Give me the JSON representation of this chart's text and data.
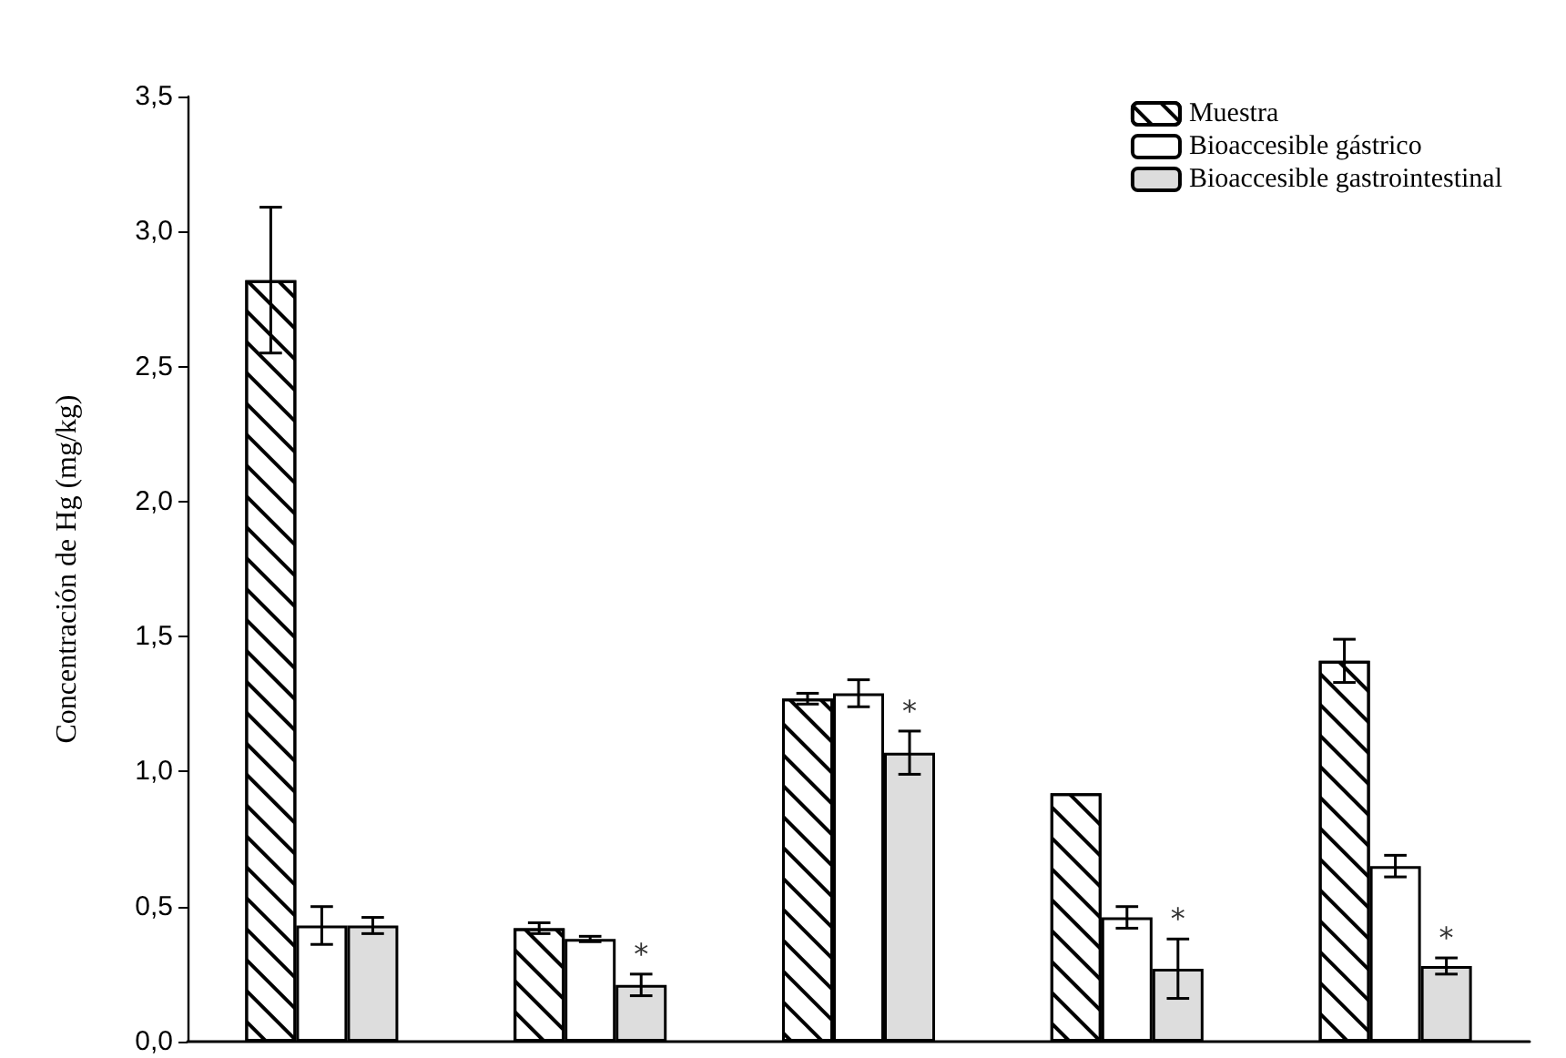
{
  "chart_data": {
    "type": "bar",
    "ylabel": "Concentración de Hg (mg/kg)",
    "categories": [
      null,
      null,
      null,
      null,
      null
    ],
    "series": [
      {
        "name": "Muestra",
        "color": "#ffffff",
        "values": [
          2.82,
          0.42,
          1.27,
          0.92,
          1.41
        ],
        "errors": [
          0.27,
          0.02,
          0.02,
          null,
          0.08
        ]
      },
      {
        "name": "Bioaccesible gástrico",
        "color": "#ffffff",
        "values": [
          0.43,
          0.38,
          1.29,
          0.46,
          0.65
        ],
        "errors": [
          0.07,
          0.01,
          0.05,
          0.04,
          0.04
        ]
      },
      {
        "name": "Bioaccesible gastrointestinal",
        "color": "#dddddd",
        "values": [
          0.43,
          0.21,
          1.07,
          0.27,
          0.28
        ],
        "errors": [
          0.03,
          0.04,
          0.08,
          0.11,
          0.03
        ],
        "value_labels": [
          null,
          "*",
          "*",
          "*",
          "*"
        ]
      }
    ],
    "ylim": [
      0,
      3.5
    ],
    "yticks": [
      {
        "value": 0,
        "label": "0,0"
      },
      {
        "value": 0.5,
        "label": "0,5"
      },
      {
        "value": 1,
        "label": "1,0"
      },
      {
        "value": 1.5,
        "label": "1,5"
      },
      {
        "value": 2,
        "label": "2,0"
      },
      {
        "value": 2.5,
        "label": "2,5"
      },
      {
        "value": 3,
        "label": "3,0"
      },
      {
        "value": 3.5,
        "label": "3,5"
      }
    ],
    "tick_labels": "y",
    "grid": false,
    "legend": "top right"
  }
}
